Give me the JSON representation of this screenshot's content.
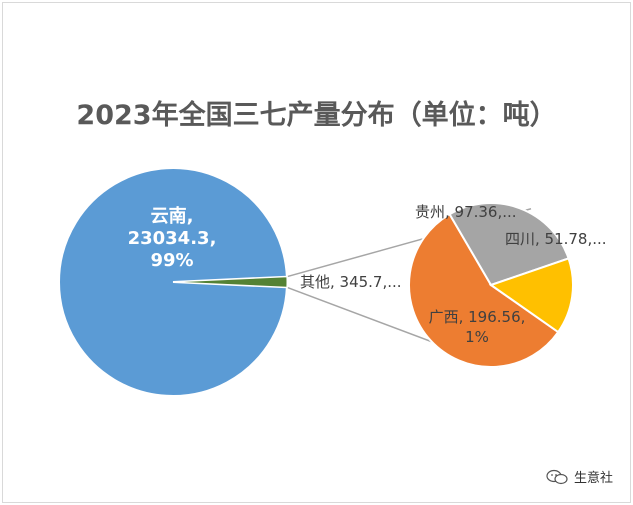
{
  "chart_data": {
    "type": "pie",
    "subtype": "pie-of-pie",
    "title": "2023年全国三七产量分布（单位：吨）",
    "main_pie": {
      "slices": [
        {
          "name": "云南",
          "value": 23034.3,
          "label_lines": [
            "云南,",
            "23034.3,",
            "99%"
          ],
          "color": "#5b9bd5"
        },
        {
          "name": "其他",
          "value": 345.7,
          "label_lines": [
            "其他, 345.7,..."
          ],
          "color": "#548235"
        }
      ]
    },
    "secondary_pie": {
      "slices": [
        {
          "name": "广西",
          "value": 196.56,
          "label_lines": [
            "广西, 196.56,",
            "1%"
          ],
          "color": "#ed7d31"
        },
        {
          "name": "贵州",
          "value": 97.36,
          "label_lines": [
            "贵州, 97.36,..."
          ],
          "color": "#a5a5a5"
        },
        {
          "name": "四川",
          "value": 51.78,
          "label_lines": [
            "四川, 51.78,..."
          ],
          "color": "#ffc000"
        }
      ]
    },
    "connector_color": "#a6a6a6"
  },
  "watermark": {
    "text": "生意社",
    "icon": "wechat-icon"
  }
}
